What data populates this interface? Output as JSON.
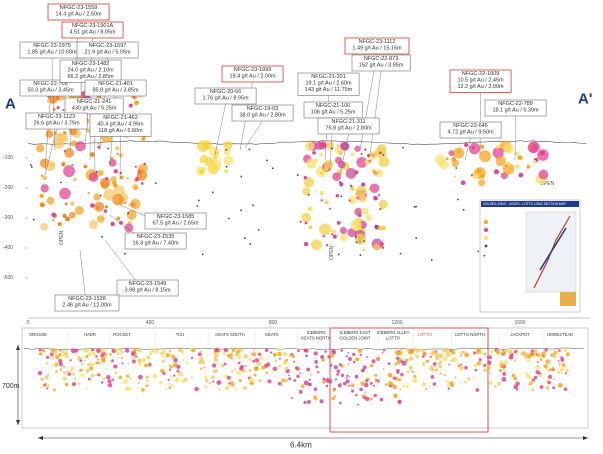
{
  "section_labels": {
    "start": "A",
    "end": "A'"
  },
  "callouts": [
    {
      "hole": "NFGC-23-1559",
      "intercepts": [
        "14.4 g/t Au / 2.50m"
      ],
      "highlight": true
    },
    {
      "hole": "NFGC-23-1901A",
      "intercepts": [
        "4.51 g/t Au / 8.05m"
      ],
      "highlight": true
    },
    {
      "hole": "NFGC-23-1975",
      "intercepts": [
        "1.85 g/t Au / 10.60m"
      ],
      "highlight": false
    },
    {
      "hole": "NFGC-23-1597",
      "intercepts": [
        "21.9 g/t Au / 5.05m"
      ],
      "highlight": false
    },
    {
      "hole": "NFGC-22-768",
      "intercepts": [
        "50.3 g/t Au / 3.45m"
      ],
      "highlight": false
    },
    {
      "hole": "NFGC-23-1482",
      "intercepts": [
        "24.0 g/t Au / 2.10m",
        "66.2 g/t Au / 2.85m"
      ],
      "highlight": false
    },
    {
      "hole": "NFGC-21-401",
      "intercepts": [
        "85.8 g/t Au / 3.85m"
      ],
      "highlight": false
    },
    {
      "hole": "NFGC-21-241",
      "intercepts": [
        "430 g/t Au / 5.25m"
      ],
      "highlight": false
    },
    {
      "hole": "NFGC-23-1123",
      "intercepts": [
        "26.6 g/t Au / 3.75m"
      ],
      "highlight": false
    },
    {
      "hole": "NFGC-21-462",
      "intercepts": [
        "40.4 g/t Au / 4.95m",
        "118 g/t Au / 6.60m"
      ],
      "highlight": false
    },
    {
      "hole": "NFGC-23-1999",
      "intercepts": [
        "19.4 g/t Au / 2.00m"
      ],
      "highlight": true
    },
    {
      "hole": "NFGC-20-66",
      "intercepts": [
        "1.76 g/t Au / 8.95m"
      ],
      "highlight": false
    },
    {
      "hole": "NFGC-19-03",
      "intercepts": [
        "38.0 g/t Au / 2.80m"
      ],
      "highlight": false
    },
    {
      "hole": "NFGC-23-1112",
      "intercepts": [
        "1.49 g/t Au / 15.15m"
      ],
      "highlight": true
    },
    {
      "hole": "NFGC-22-873",
      "intercepts": [
        "152 g/t Au / 3.85m"
      ],
      "highlight": false
    },
    {
      "hole": "NFGC-21-201",
      "intercepts": [
        "19.1 g/t Au / 2.60m",
        "143 g/t Au / 11.75m"
      ],
      "highlight": false
    },
    {
      "hole": "NFGC-21-100",
      "intercepts": [
        "106 g/t Au / 5.25m"
      ],
      "highlight": false
    },
    {
      "hole": "NFGC-21-311",
      "intercepts": [
        "76.8 g/t Au / 2.80m"
      ],
      "highlight": false
    },
    {
      "hole": "NFGC-22-1009",
      "intercepts": [
        "10.5 g/t Au / 2.45m",
        "12.2 g/t Au / 2.00m"
      ],
      "highlight": true
    },
    {
      "hole": "NFGC-22-788",
      "intercepts": [
        "18.1 g/t Au / 5.30m"
      ],
      "highlight": false
    },
    {
      "hole": "NFGC-22-646",
      "intercepts": [
        "4.72 g/t Au / 9.50m"
      ],
      "highlight": false
    },
    {
      "hole": "NFGC-23-1585",
      "intercepts": [
        "67.5 g/t Au / 2.65m"
      ],
      "highlight": false
    },
    {
      "hole": "NFGC-23-1535",
      "intercepts": [
        "16.3 g/t Au / 7.40m"
      ],
      "highlight": false
    },
    {
      "hole": "NFGC-23-1549",
      "intercepts": [
        "3.98 g/t Au / 8.15m"
      ],
      "highlight": false
    },
    {
      "hole": "NFGC-23-1528",
      "intercepts": [
        "2.46 g/t Au / 12.00m"
      ],
      "highlight": false
    }
  ],
  "long_section": {
    "x_ticks": [
      "0",
      "400",
      "800",
      "1200",
      "1600"
    ],
    "y_ticks": [
      "-100",
      "-200",
      "-300",
      "-400",
      "-500"
    ],
    "open_labels": [
      "OPEN",
      "OPEN",
      "OPEN"
    ]
  },
  "legend": {
    "title": "GOLDEN JOINT - KEATS - LOTTO LONG SECTION MAP"
  },
  "overview": {
    "zones": [
      {
        "lines": [
          "GROUSE"
        ],
        "highlight": false
      },
      {
        "lines": [
          "HADR"
        ],
        "highlight": false
      },
      {
        "lines": [
          "ROCKET"
        ],
        "highlight": false
      },
      {
        "lines": [
          "TCH"
        ],
        "highlight": false
      },
      {
        "lines": [
          "KEATS SOUTH"
        ],
        "highlight": false
      },
      {
        "lines": [
          "KEATS"
        ],
        "highlight": false
      },
      {
        "lines": [
          "ICEBERG",
          "KEATS NORTH"
        ],
        "highlight": false
      },
      {
        "lines": [
          "ICEBERG EAST",
          "GOLDEN JOINT"
        ],
        "highlight": false
      },
      {
        "lines": [
          "ICEBERG ALLEY",
          "LOTTO"
        ],
        "highlight": false
      },
      {
        "lines": [
          "LOTTO"
        ],
        "highlight": true
      },
      {
        "lines": [
          "LOTTO NORTH"
        ],
        "highlight": false
      },
      {
        "lines": [
          "JACKPOT"
        ],
        "highlight": false
      },
      {
        "lines": [
          "HOMESTEAD"
        ],
        "highlight": false
      }
    ],
    "depth": "700m",
    "length": "6.4km"
  }
}
